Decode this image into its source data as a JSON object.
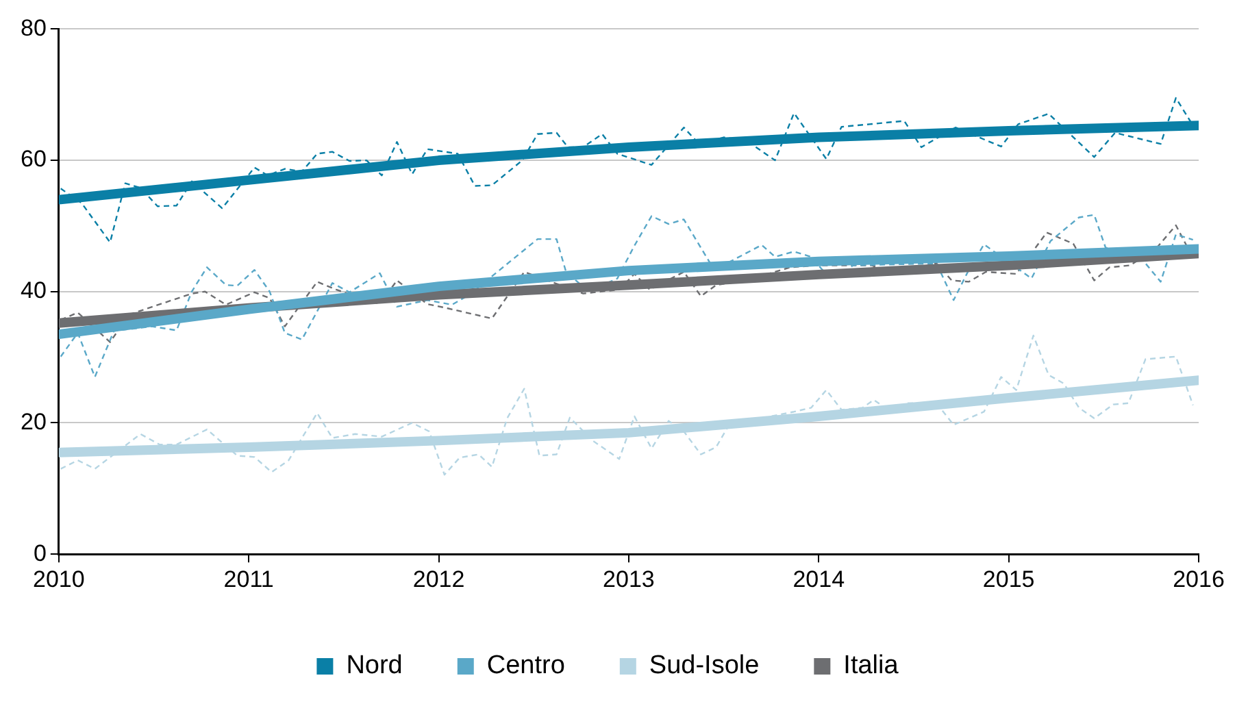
{
  "chart_data": {
    "type": "line",
    "xlim": [
      2010,
      2016
    ],
    "xticks": [
      2010,
      2011,
      2012,
      2013,
      2014,
      2015,
      2016
    ],
    "ylim": [
      0,
      80
    ],
    "yticks": [
      0,
      20,
      40,
      60,
      80
    ],
    "grid": "y",
    "legend": "bottom",
    "marker": "none",
    "series": [
      {
        "color": "#0a7fa6",
        "line_style": "dashed",
        "x": [
          2010.01,
          2010.12,
          2010.27,
          2010.35,
          2010.43,
          2010.52,
          2010.62,
          2010.7,
          2010.86,
          2011.03,
          2011.1,
          2011.19,
          2011.28,
          2011.36,
          2011.44,
          2011.53,
          2011.62,
          2011.7,
          2011.78,
          2011.86,
          2011.94,
          2012.1,
          2012.19,
          2012.28,
          2012.44,
          2012.52,
          2012.62,
          2012.68,
          2012.76,
          2012.86,
          2012.94,
          2013.12,
          2013.29,
          2013.37,
          2013.5,
          2013.62,
          2013.77,
          2013.87,
          2014.04,
          2014.12,
          2014.45,
          2014.54,
          2014.72,
          2014.96,
          2015.05,
          2015.21,
          2015.45,
          2015.56,
          2015.8,
          2015.88,
          2015.97
        ],
        "values": [
          55.7,
          53.5,
          47.5,
          56.5,
          55.8,
          53,
          53.1,
          56.8,
          52.7,
          58.9,
          57.7,
          58.7,
          58.3,
          61,
          61.3,
          59.9,
          60,
          57.7,
          62.8,
          57.9,
          61.7,
          61,
          56.1,
          56.2,
          60,
          64,
          64.2,
          62,
          62,
          64,
          61,
          59.3,
          65,
          62.5,
          63.5,
          63,
          60,
          67.2,
          60.2,
          65.1,
          66,
          62,
          65,
          62.1,
          65.5,
          67.1,
          60.5,
          64.2,
          62.5,
          69.5,
          65.3
        ]
      },
      {
        "color": "#5aa8c8",
        "line_style": "dashed",
        "x": [
          2010.01,
          2010.1,
          2010.19,
          2010.29,
          2010.49,
          2010.62,
          2010.7,
          2010.78,
          2010.88,
          2010.94,
          2011.03,
          2011.11,
          2011.19,
          2011.28,
          2011.44,
          2011.53,
          2011.69,
          2011.78,
          2011.94,
          2012.07,
          2012.16,
          2012.52,
          2012.62,
          2012.67,
          2012.79,
          2012.94,
          2013.03,
          2013.12,
          2013.21,
          2013.29,
          2013.45,
          2013.7,
          2013.77,
          2013.87,
          2013.96,
          2014.02,
          2014.11,
          2014.18,
          2014.62,
          2014.71,
          2014.79,
          2014.87,
          2015.12,
          2015.22,
          2015.37,
          2015.45,
          2015.51,
          2015.7,
          2015.8,
          2015.88,
          2015.97
        ],
        "values": [
          30.1,
          33.7,
          27,
          34,
          34.7,
          34.1,
          40,
          43.7,
          41,
          40.9,
          43.3,
          40,
          33.7,
          32.7,
          41.3,
          39.9,
          42.8,
          37.7,
          38.7,
          38,
          39.5,
          48,
          48,
          43,
          40,
          42,
          47,
          51.5,
          50.3,
          51,
          43.3,
          47.1,
          45.3,
          46.1,
          45.3,
          43.3,
          42.3,
          44,
          44.3,
          38.7,
          43.3,
          47.2,
          42,
          47.7,
          51.3,
          51.7,
          46.7,
          45,
          41.5,
          48.7,
          47.9
        ]
      },
      {
        "color": "#b5d5e3",
        "line_style": "dashed",
        "x": [
          2010.01,
          2010.1,
          2010.19,
          2010.43,
          2010.53,
          2010.62,
          2010.78,
          2010.94,
          2011.03,
          2011.12,
          2011.21,
          2011.28,
          2011.36,
          2011.44,
          2011.56,
          2011.7,
          2011.86,
          2011.95,
          2012.03,
          2012.11,
          2012.21,
          2012.28,
          2012.36,
          2012.45,
          2012.53,
          2012.62,
          2012.69,
          2012.81,
          2012.95,
          2013.03,
          2013.12,
          2013.21,
          2013.29,
          2013.38,
          2013.46,
          2013.52,
          2013.62,
          2013.75,
          2013.87,
          2013.96,
          2014.04,
          2014.12,
          2014.23,
          2014.29,
          2014.38,
          2014.47,
          2014.62,
          2014.71,
          2014.87,
          2014.96,
          2015.04,
          2015.13,
          2015.21,
          2015.29,
          2015.37,
          2015.45,
          2015.55,
          2015.63,
          2015.72,
          2015.88,
          2015.97
        ],
        "values": [
          13,
          14.3,
          13,
          18.3,
          16.7,
          16.7,
          19,
          15,
          14.8,
          12.5,
          14.3,
          17.7,
          21.5,
          17.7,
          18.3,
          17.9,
          20,
          18.7,
          12.1,
          14.7,
          15.2,
          13.3,
          20.7,
          25.2,
          15,
          15.2,
          20.8,
          17.3,
          14.5,
          21,
          16.1,
          20.3,
          18.7,
          15.2,
          16.3,
          19.3,
          19.7,
          21,
          21.7,
          22.3,
          25,
          22,
          22.3,
          23.5,
          21.7,
          23,
          23,
          19.7,
          21.7,
          27,
          25,
          33.3,
          27.3,
          26,
          22.3,
          20.7,
          22.8,
          23,
          29.7,
          30.1,
          22.7
        ]
      },
      {
        "color": "#6d6e71",
        "line_style": "dashed",
        "x": [
          2010.01,
          2010.1,
          2010.27,
          2010.37,
          2010.7,
          2010.77,
          2010.88,
          2011.03,
          2011.11,
          2011.19,
          2011.36,
          2011.46,
          2011.69,
          2011.78,
          2011.94,
          2012.04,
          2012.28,
          2012.45,
          2012.76,
          2012.95,
          2013.03,
          2013.11,
          2013.29,
          2013.38,
          2013.46,
          2013.62,
          2013.85,
          2013.99,
          2014.28,
          2014.38,
          2014.62,
          2014.7,
          2014.79,
          2014.88,
          2015.04,
          2015.2,
          2015.34,
          2015.45,
          2015.53,
          2015.64,
          2015.78,
          2015.88,
          2015.96
        ],
        "values": [
          35.7,
          36.8,
          32.3,
          36.5,
          39.7,
          40,
          38,
          39.9,
          39,
          34.7,
          41.5,
          40.3,
          38.1,
          41.7,
          38.1,
          37.5,
          35.9,
          43,
          39.7,
          40.3,
          42.7,
          40.3,
          43,
          39.3,
          41,
          41.7,
          43.7,
          44,
          44,
          42.7,
          44.3,
          41.7,
          41.5,
          43,
          42.7,
          49,
          47.3,
          41.7,
          43.7,
          44,
          46.7,
          50.1,
          45.7
        ]
      },
      {
        "name": "Nord",
        "color": "#0a7fa6",
        "line_style": "solid",
        "x": [
          2010,
          2011,
          2012,
          2013,
          2014,
          2015,
          2016
        ],
        "values": [
          54,
          57,
          60,
          62,
          63.5,
          64.5,
          65.3
        ]
      },
      {
        "name": "Centro",
        "color": "#5aa8c8",
        "line_style": "solid",
        "x": [
          2010,
          2011,
          2012,
          2013,
          2014,
          2015,
          2016
        ],
        "values": [
          33.5,
          37.3,
          40.8,
          43.2,
          44.6,
          45.4,
          46.5
        ]
      },
      {
        "name": "Sud-Isole",
        "color": "#b5d5e3",
        "line_style": "solid",
        "x": [
          2010,
          2011,
          2012,
          2013,
          2014,
          2015,
          2016
        ],
        "values": [
          15.5,
          16.3,
          17.3,
          18.5,
          21,
          23.8,
          26.5
        ]
      },
      {
        "name": "Italia",
        "color": "#6d6e71",
        "line_style": "solid",
        "x": [
          2010,
          2011,
          2012,
          2013,
          2014,
          2015,
          2016
        ],
        "values": [
          35.2,
          37.5,
          39.5,
          41,
          42.6,
          44,
          45.8
        ]
      }
    ]
  }
}
